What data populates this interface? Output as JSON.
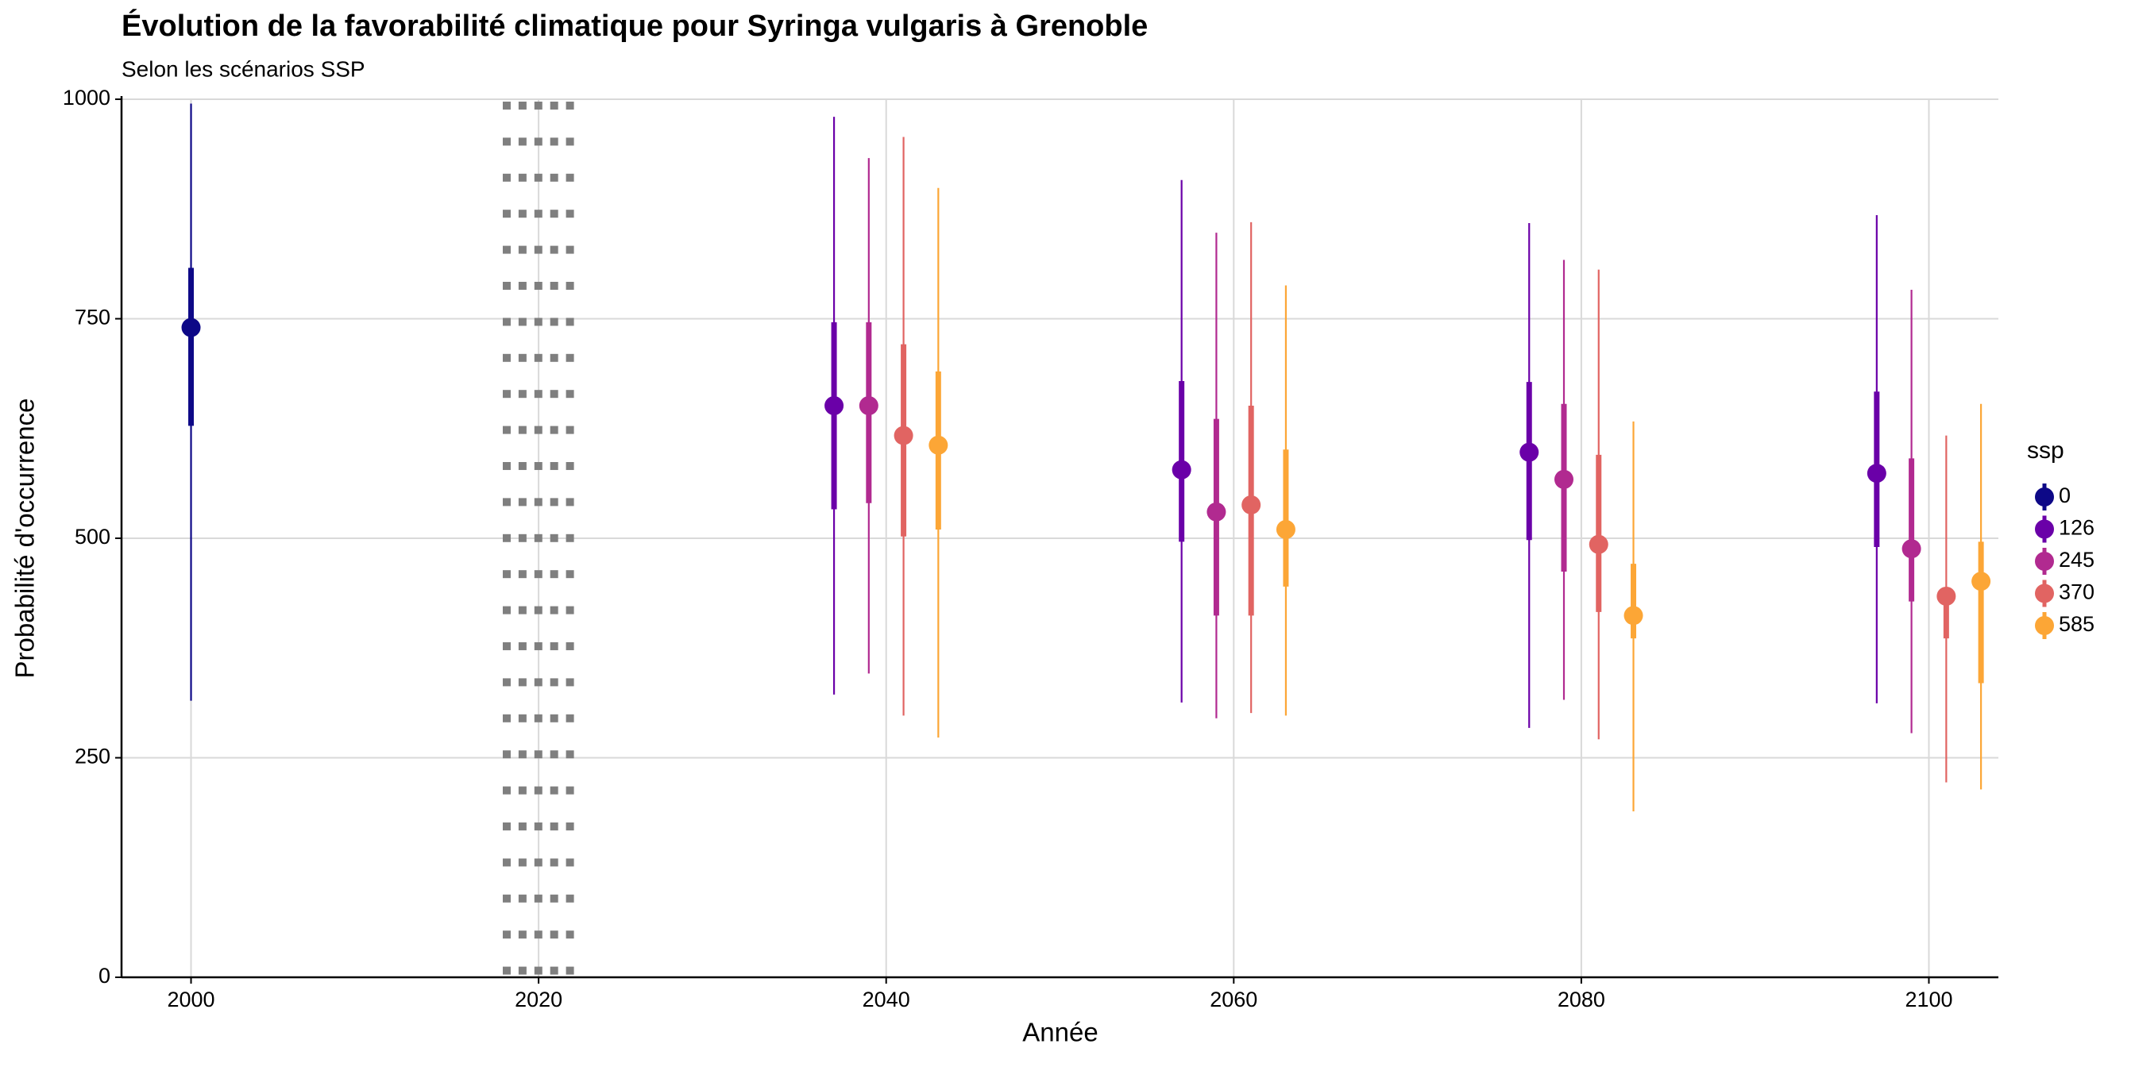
{
  "chart_data": {
    "type": "pointrange",
    "title": "Évolution de la favorabilité climatique pour Syringa vulgaris à Grenoble",
    "subtitle": "Selon les scénarios SSP",
    "x_label": "Année",
    "y_label": "Probabilité d'occurrence",
    "legend_title": "ssp",
    "x": [
      2000,
      2040,
      2060,
      2080,
      2100
    ],
    "xlim": [
      1996,
      2104
    ],
    "xticks": [
      2000,
      2020,
      2040,
      2060,
      2080,
      2100
    ],
    "ylim": [
      0,
      1000
    ],
    "yticks": [
      0,
      250,
      500,
      750,
      1000
    ],
    "grid": true,
    "vline": 2020,
    "vline_color": "#7f7f7f",
    "legend": "right",
    "series": [
      {
        "name": "0",
        "color": "#0d0887",
        "values": [
          740,
          null,
          null,
          null,
          null
        ],
        "inner_low": [
          628,
          null,
          null,
          null,
          null
        ],
        "inner_high": [
          808,
          null,
          null,
          null,
          null
        ],
        "outer_low": [
          315,
          null,
          null,
          null,
          null
        ],
        "outer_high": [
          995,
          null,
          null,
          null,
          null
        ]
      },
      {
        "name": "126",
        "color": "#6a00a8",
        "values": [
          null,
          651,
          578,
          598,
          574
        ],
        "inner_low": [
          null,
          533,
          496,
          498,
          490
        ],
        "inner_high": [
          null,
          746,
          679,
          678,
          667
        ],
        "outer_low": [
          null,
          322,
          313,
          284,
          312
        ],
        "outer_high": [
          null,
          980,
          908,
          859,
          868
        ]
      },
      {
        "name": "245",
        "color": "#b12a90",
        "values": [
          null,
          651,
          530,
          567,
          488
        ],
        "inner_low": [
          null,
          540,
          412,
          462,
          428
        ],
        "inner_high": [
          null,
          746,
          636,
          653,
          591
        ],
        "outer_low": [
          null,
          346,
          295,
          316,
          278
        ],
        "outer_high": [
          null,
          933,
          848,
          817,
          783
        ]
      },
      {
        "name": "370",
        "color": "#e16462",
        "values": [
          null,
          617,
          538,
          493,
          434
        ],
        "inner_low": [
          null,
          502,
          412,
          416,
          386
        ],
        "inner_high": [
          null,
          721,
          651,
          595,
          440
        ],
        "outer_low": [
          null,
          298,
          301,
          271,
          222
        ],
        "outer_high": [
          null,
          957,
          860,
          806,
          617
        ]
      },
      {
        "name": "585",
        "color": "#fca636",
        "values": [
          null,
          606,
          510,
          412,
          451
        ],
        "inner_low": [
          null,
          510,
          445,
          386,
          335
        ],
        "inner_high": [
          null,
          690,
          601,
          471,
          496
        ],
        "outer_low": [
          null,
          273,
          298,
          189,
          214
        ],
        "outer_high": [
          null,
          899,
          788,
          633,
          653
        ]
      }
    ]
  }
}
